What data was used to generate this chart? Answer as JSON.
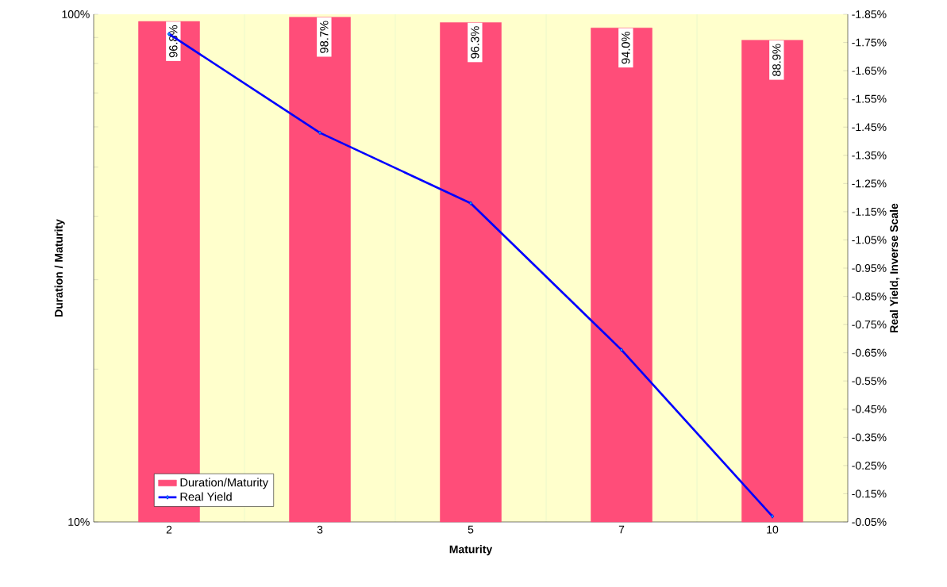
{
  "chart_data": {
    "type": "bar",
    "xlabel": "Maturity",
    "ylabel": "Duration / Maturity",
    "y2label": "Real Yield, Inverse Scale",
    "categories": [
      "2",
      "3",
      "5",
      "7",
      "10"
    ],
    "series": [
      {
        "name": "Duration/Maturity",
        "color": "#ff4d79",
        "values": [
          96.8,
          98.7,
          96.3,
          94.0,
          88.9
        ],
        "value_labels": [
          "96.8%",
          "98.7%",
          "96.3%",
          "94.0%",
          "88.9%"
        ]
      },
      {
        "name": "Real Yield",
        "type": "line",
        "axis": "y2",
        "color": "#0000ff",
        "values": [
          -1.78,
          -1.43,
          -1.18,
          -0.66,
          -0.07
        ]
      }
    ],
    "log": "y",
    "ylim": [
      10,
      100
    ],
    "yticks": [
      {
        "value": 10,
        "label": "10%"
      },
      {
        "value": 20,
        "label": null
      },
      {
        "value": 30,
        "label": null
      },
      {
        "value": 40,
        "label": null
      },
      {
        "value": 50,
        "label": null
      },
      {
        "value": 60,
        "label": null
      },
      {
        "value": 70,
        "label": null
      },
      {
        "value": 80,
        "label": null
      },
      {
        "value": 90,
        "label": null
      },
      {
        "value": 100,
        "label": "100%"
      }
    ],
    "y2lim": [
      -0.05,
      -1.85
    ],
    "y2ticks": [
      {
        "value": -1.85,
        "label": "-1.85%"
      },
      {
        "value": -1.75,
        "label": "-1.75%"
      },
      {
        "value": -1.65,
        "label": "-1.65%"
      },
      {
        "value": -1.55,
        "label": "-1.55%"
      },
      {
        "value": -1.45,
        "label": "-1.45%"
      },
      {
        "value": -1.35,
        "label": "-1.35%"
      },
      {
        "value": -1.25,
        "label": "-1.25%"
      },
      {
        "value": -1.15,
        "label": "-1.15%"
      },
      {
        "value": -1.05,
        "label": "-1.05%"
      },
      {
        "value": -0.95,
        "label": "-0.95%"
      },
      {
        "value": -0.85,
        "label": "-0.85%"
      },
      {
        "value": -0.75,
        "label": "-0.75%"
      },
      {
        "value": -0.65,
        "label": "-0.65%"
      },
      {
        "value": -0.55,
        "label": "-0.55%"
      },
      {
        "value": -0.45,
        "label": "-0.45%"
      },
      {
        "value": -0.35,
        "label": "-0.35%"
      },
      {
        "value": -0.25,
        "label": "-0.25%"
      },
      {
        "value": -0.15,
        "label": "-0.15%"
      },
      {
        "value": -0.05,
        "label": "-0.05%"
      }
    ],
    "grid": "x",
    "legend": "bottom left",
    "marker": "diamond",
    "line_style": "solid"
  }
}
